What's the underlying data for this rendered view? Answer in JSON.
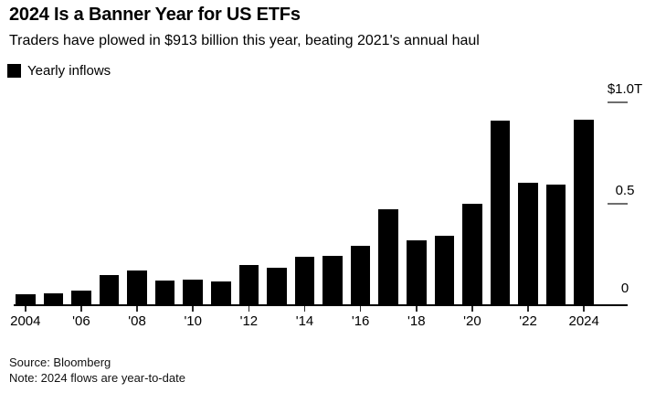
{
  "header": {
    "title": "2024 Is a Banner Year for US ETFs",
    "subtitle": "Traders have plowed in $913 billion this year, beating 2021's annual haul"
  },
  "legend": {
    "items": [
      {
        "label": "Yearly inflows",
        "color": "#000000"
      }
    ]
  },
  "chart_data": {
    "type": "bar",
    "title": "2024 Is a Banner Year for US ETFs",
    "subtitle": "Traders have plowed in $913 billion this year, beating 2021's annual haul",
    "legend_entries": [
      "Yearly inflows"
    ],
    "legend_position": "top-left",
    "unit": "USD billions",
    "categories": [
      2004,
      2005,
      2006,
      2007,
      2008,
      2009,
      2010,
      2011,
      2012,
      2013,
      2014,
      2015,
      2016,
      2017,
      2018,
      2019,
      2020,
      2021,
      2022,
      2023,
      2024
    ],
    "values": [
      54,
      60,
      73,
      150,
      170,
      120,
      128,
      116,
      197,
      186,
      240,
      242,
      294,
      472,
      321,
      341,
      501,
      910,
      604,
      595,
      913
    ],
    "bar_color": "#000000",
    "grid": false,
    "ylim_trillions": [
      0,
      1.0
    ],
    "y_axis_side": "right",
    "y_ticks": [
      {
        "value_trillions": 1.0,
        "label": "$1.0T"
      },
      {
        "value_trillions": 0.5,
        "label": "0.5"
      },
      {
        "value_trillions": 0.0,
        "label": "0"
      }
    ],
    "x_tick_labels": [
      {
        "index": 0,
        "label": "2004"
      },
      {
        "index": 2,
        "label": "'06"
      },
      {
        "index": 4,
        "label": "'08"
      },
      {
        "index": 6,
        "label": "'10"
      },
      {
        "index": 8,
        "label": "'12"
      },
      {
        "index": 10,
        "label": "'14"
      },
      {
        "index": 12,
        "label": "'16"
      },
      {
        "index": 14,
        "label": "'18"
      },
      {
        "index": 16,
        "label": "'20"
      },
      {
        "index": 18,
        "label": "'22"
      },
      {
        "index": 20,
        "label": "2024"
      }
    ]
  },
  "footer": {
    "source": "Source: Bloomberg",
    "note": "Note: 2024 flows are year-to-date"
  }
}
